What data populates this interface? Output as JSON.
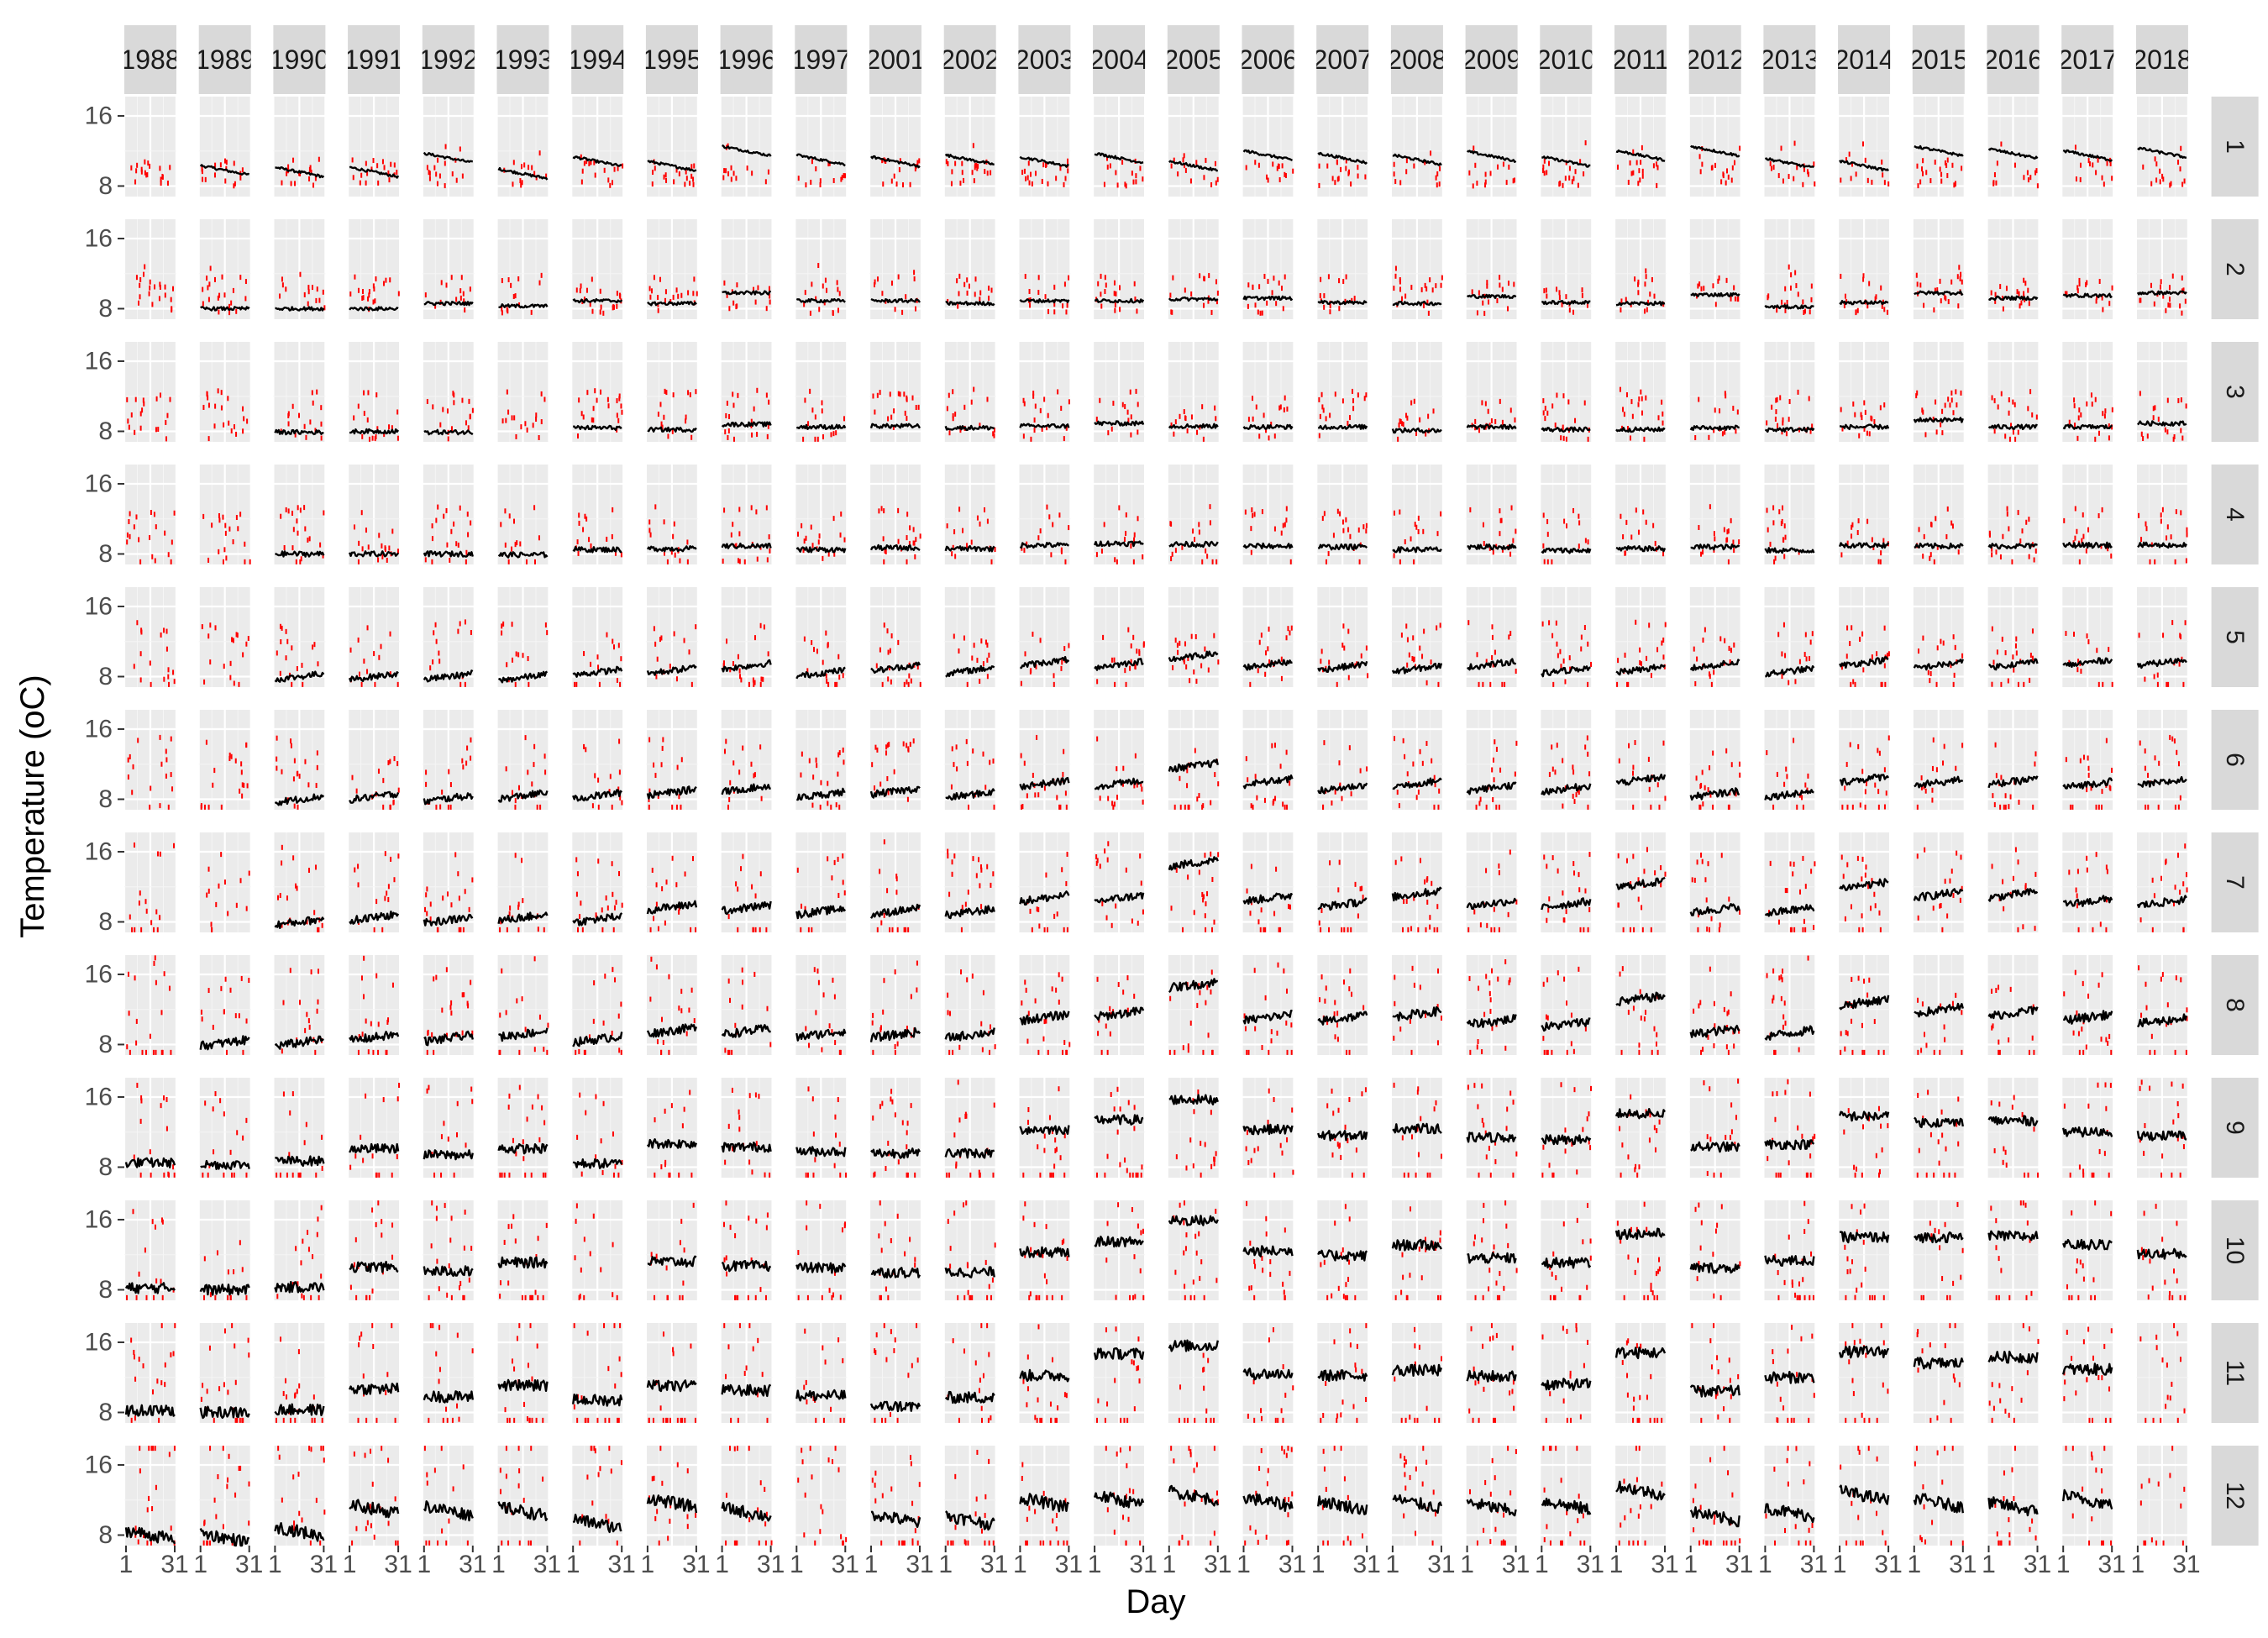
{
  "chart_data": {
    "type": "line",
    "title": "",
    "xlabel": "Day",
    "ylabel": "Temperature (oC)",
    "column_facets": [
      "1988",
      "1989",
      "1990",
      "1991",
      "1992",
      "1993",
      "1994",
      "1995",
      "1996",
      "1997",
      "2001",
      "2002",
      "2003",
      "2004",
      "2005",
      "2006",
      "2007",
      "2008",
      "2009",
      "2010",
      "2011",
      "2012",
      "2013",
      "2014",
      "2015",
      "2016",
      "2017",
      "2018"
    ],
    "row_facets": [
      "1",
      "2",
      "3",
      "4",
      "5",
      "6",
      "7",
      "8",
      "9",
      "10",
      "11",
      "12"
    ],
    "x_ticks": [
      1,
      31
    ],
    "x_range": [
      1,
      31
    ],
    "y_ticks": [
      8,
      16
    ],
    "y_range": [
      6.8,
      18.2
    ],
    "panel_background": "#EBEBEB",
    "strip_background": "#D9D9D9",
    "grid_color": "#FFFFFF",
    "series": [
      {
        "style": "line",
        "color": "#000000"
      },
      {
        "style": "points",
        "color": "#FF0000"
      }
    ],
    "black_line_levels": [
      [
        null,
        9.8,
        9.6,
        9.6,
        11.2,
        9.4,
        10.8,
        10.3,
        12.0,
        11.0,
        10.8,
        11.0,
        10.8,
        11.2,
        10.3,
        11.5,
        11.2,
        11.0,
        11.4,
        10.8,
        11.5,
        12.0,
        10.6,
        10.3,
        12.0,
        11.7,
        11.5,
        11.8
      ],
      [
        null,
        8.0,
        8.0,
        8.0,
        8.6,
        8.3,
        8.9,
        8.6,
        9.8,
        8.9,
        8.9,
        8.6,
        8.9,
        8.9,
        9.1,
        9.2,
        8.7,
        8.6,
        9.4,
        8.7,
        8.6,
        9.6,
        8.2,
        8.7,
        9.8,
        9.2,
        9.5,
        9.8
      ],
      [
        null,
        null,
        7.9,
        8.0,
        7.9,
        null,
        8.4,
        8.2,
        8.8,
        8.5,
        8.6,
        8.4,
        8.6,
        8.9,
        8.6,
        8.5,
        8.5,
        8.1,
        8.5,
        8.2,
        8.2,
        8.4,
        8.2,
        8.5,
        9.3,
        8.5,
        8.5,
        8.9
      ],
      [
        null,
        null,
        8.0,
        8.0,
        8.0,
        7.9,
        8.5,
        8.6,
        8.9,
        8.5,
        8.7,
        8.6,
        9.0,
        9.2,
        9.1,
        8.9,
        8.8,
        8.5,
        8.8,
        8.4,
        8.6,
        8.8,
        8.4,
        9.0,
        8.9,
        8.9,
        9.0,
        9.0
      ],
      [
        null,
        null,
        8.0,
        8.0,
        8.0,
        7.9,
        8.5,
        8.7,
        9.2,
        8.4,
        9.0,
        8.7,
        9.6,
        9.4,
        10.3,
        9.4,
        9.1,
        8.9,
        9.4,
        8.7,
        8.8,
        9.3,
        8.6,
        9.6,
        9.3,
        9.4,
        9.6,
        9.6
      ],
      [
        null,
        null,
        8.0,
        8.3,
        8.1,
        8.4,
        8.4,
        8.8,
        9.2,
        8.5,
        8.9,
        8.5,
        9.8,
        9.8,
        11.8,
        10.0,
        9.3,
        9.8,
        9.3,
        9.2,
        10.2,
        8.6,
        8.6,
        10.3,
        9.9,
        10.0,
        9.7,
        9.9
      ],
      [
        null,
        null,
        8.0,
        8.5,
        8.2,
        8.5,
        8.3,
        9.7,
        9.6,
        9.2,
        9.2,
        9.1,
        10.7,
        10.7,
        14.7,
        10.7,
        10.0,
        11.2,
        10.1,
        10.0,
        12.3,
        9.4,
        9.3,
        12.2,
        11.1,
        11.1,
        10.3,
        10.2
      ],
      [
        null,
        8.2,
        8.2,
        8.8,
        8.7,
        9.2,
        8.6,
        9.6,
        9.5,
        9.2,
        9.1,
        9.1,
        11.1,
        11.5,
        14.8,
        11.1,
        11.0,
        11.5,
        10.6,
        10.3,
        13.2,
        9.5,
        9.3,
        12.8,
        11.9,
        11.6,
        11.1,
        10.7
      ],
      [
        8.5,
        8.3,
        8.7,
        10.1,
        9.4,
        10.1,
        8.4,
        10.7,
        10.3,
        9.8,
        9.6,
        9.6,
        12.3,
        13.4,
        15.7,
        12.3,
        11.6,
        12.4,
        11.4,
        11.1,
        14.1,
        10.3,
        10.6,
        13.8,
        13.1,
        13.3,
        12.0,
        11.6
      ],
      [
        8.2,
        8.0,
        8.3,
        10.6,
        10.1,
        11.1,
        null,
        11.2,
        10.7,
        10.5,
        10.0,
        10.0,
        12.3,
        13.5,
        15.9,
        12.4,
        11.9,
        13.1,
        11.6,
        11.1,
        14.4,
        10.5,
        11.3,
        14.0,
        14.0,
        14.1,
        13.1,
        12.1
      ],
      [
        8.2,
        8.0,
        8.3,
        10.7,
        9.8,
        11.1,
        9.4,
        11.0,
        10.5,
        9.9,
        8.7,
        9.7,
        12.2,
        14.7,
        15.6,
        12.4,
        12.2,
        12.8,
        12.1,
        11.2,
        14.8,
        10.4,
        12.0,
        14.9,
        13.6,
        14.3,
        12.9,
        null
      ],
      [
        8.0,
        7.7,
        8.4,
        11.0,
        10.8,
        10.7,
        9.3,
        11.7,
        10.6,
        null,
        9.9,
        9.7,
        11.7,
        12.0,
        12.5,
        11.8,
        11.4,
        11.6,
        11.2,
        11.4,
        13.1,
        10.1,
        10.6,
        12.5,
        11.7,
        11.2,
        12.0,
        null
      ]
    ]
  }
}
